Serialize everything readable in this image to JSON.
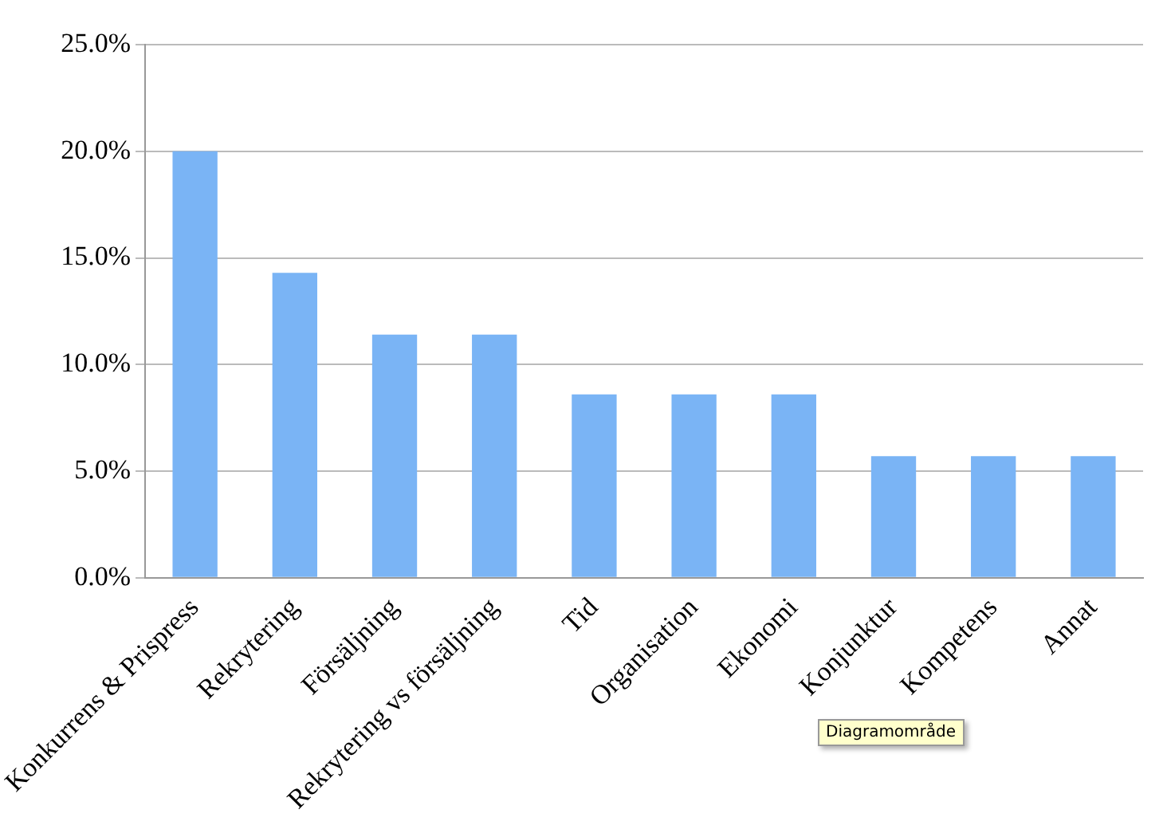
{
  "chart_data": {
    "type": "bar",
    "categories": [
      "Konkurrens & Prispress",
      "Rekrytering",
      "Försäljning",
      "Rekrytering vs försäljning",
      "Tid",
      "Organisation",
      "Ekonomi",
      "Konjunktur",
      "Kompetens",
      "Annat"
    ],
    "values": [
      20.0,
      14.3,
      11.4,
      11.4,
      8.6,
      8.6,
      8.6,
      5.7,
      5.7,
      5.7
    ],
    "color": "#7ab4f5",
    "ylim": [
      0,
      25
    ],
    "yticks": [
      {
        "value": 0,
        "label": "0.0%"
      },
      {
        "value": 5,
        "label": "5.0%"
      },
      {
        "value": 10,
        "label": "10.0%"
      },
      {
        "value": 15,
        "label": "15.0%"
      },
      {
        "value": 20,
        "label": "20.0%"
      },
      {
        "value": 25,
        "label": "25.0%"
      }
    ],
    "grid": "y",
    "legend": false,
    "annotations": [
      "Diagramområde"
    ]
  }
}
